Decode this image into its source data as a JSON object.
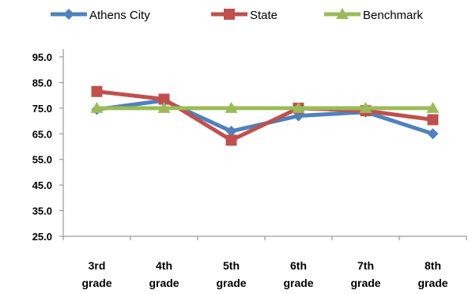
{
  "chart_data": {
    "type": "line",
    "categories": [
      [
        "3rd",
        "grade"
      ],
      [
        "4th",
        "grade"
      ],
      [
        "5th",
        "grade"
      ],
      [
        "6th",
        "grade"
      ],
      [
        "7th",
        "grade"
      ],
      [
        "8th",
        "grade"
      ]
    ],
    "series": [
      {
        "name": "Athens City",
        "color": "#4F81BD",
        "marker": "diamond",
        "values": [
          74.5,
          78.0,
          66.0,
          72.0,
          73.5,
          65.0
        ]
      },
      {
        "name": "State",
        "color": "#C0504D",
        "marker": "square",
        "values": [
          81.5,
          78.5,
          62.5,
          75.0,
          74.0,
          70.5
        ]
      },
      {
        "name": "Benchmark",
        "color": "#9BBB59",
        "marker": "triangle",
        "values": [
          75.0,
          75.0,
          75.0,
          75.0,
          75.0,
          75.0
        ]
      }
    ],
    "ylim": [
      25.0,
      95.0
    ],
    "yticks": [
      "95.0",
      "85.0",
      "75.0",
      "65.0",
      "55.0",
      "45.0",
      "35.0",
      "25.0"
    ],
    "legend_position": "top",
    "grid": false
  }
}
